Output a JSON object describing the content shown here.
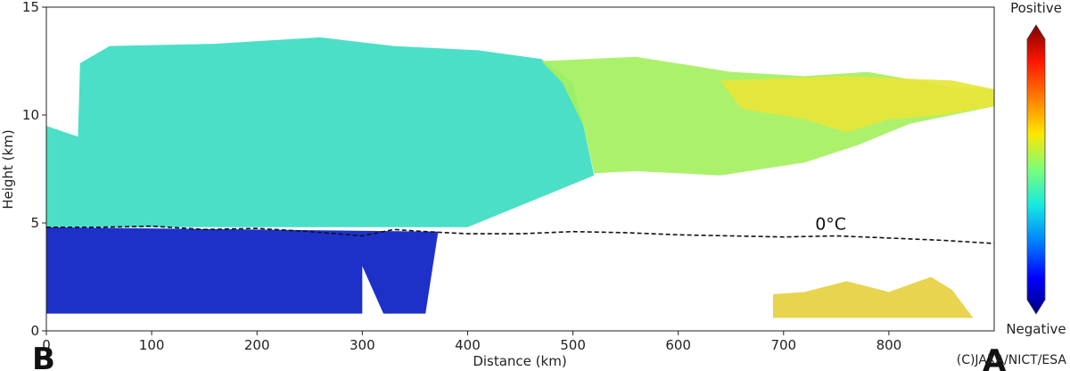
{
  "chart_data": {
    "type": "heatmap",
    "xlabel": "Distance (km)",
    "ylabel": "Height (km)",
    "xlim": [
      0,
      900
    ],
    "ylim": [
      0,
      15
    ],
    "x_ticks": [
      0,
      100,
      200,
      300,
      400,
      500,
      600,
      700,
      800
    ],
    "y_ticks": [
      0,
      5,
      10,
      15
    ],
    "colorbar": {
      "top_label": "Positive",
      "bottom_label": "Negative",
      "colors": [
        "#00007f",
        "#0000ff",
        "#0080ff",
        "#15e8e1",
        "#7bff7b",
        "#ffe600",
        "#ff7b00",
        "#ff1500",
        "#7f0000"
      ]
    },
    "regions": [
      {
        "name": "negative-below-melting",
        "color": "#0a1fc4",
        "outline": [
          [
            0,
            0.8
          ],
          [
            300,
            0.8
          ],
          [
            300,
            3.0
          ],
          [
            320,
            0.8
          ],
          [
            360,
            0.8
          ],
          [
            372,
            4.6
          ],
          [
            0,
            4.8
          ]
        ]
      },
      {
        "name": "cyan-green-upper",
        "color": "#3cdcc3",
        "outline": [
          [
            0,
            4.8
          ],
          [
            0,
            9.5
          ],
          [
            30,
            9.0
          ],
          [
            32,
            12.4
          ],
          [
            60,
            13.2
          ],
          [
            160,
            13.3
          ],
          [
            260,
            13.6
          ],
          [
            330,
            13.2
          ],
          [
            410,
            13.0
          ],
          [
            470,
            12.6
          ],
          [
            500,
            11.5
          ],
          [
            510,
            9.5
          ],
          [
            520,
            7.2
          ],
          [
            400,
            4.8
          ],
          [
            0,
            4.8
          ]
        ]
      },
      {
        "name": "green-yellow-transition",
        "color": "#a5f060",
        "outline": [
          [
            470,
            12.5
          ],
          [
            560,
            12.7
          ],
          [
            650,
            12.0
          ],
          [
            720,
            11.8
          ],
          [
            780,
            12.0
          ],
          [
            860,
            11.3
          ],
          [
            900,
            11.2
          ],
          [
            900,
            10.4
          ],
          [
            820,
            9.6
          ],
          [
            770,
            8.6
          ],
          [
            720,
            7.8
          ],
          [
            640,
            7.2
          ],
          [
            560,
            7.4
          ],
          [
            520,
            7.3
          ],
          [
            510,
            9.5
          ],
          [
            490,
            11.5
          ]
        ]
      },
      {
        "name": "yellow-orange-anvil",
        "color": "#e7e639",
        "outline": [
          [
            640,
            11.6
          ],
          [
            760,
            11.8
          ],
          [
            860,
            11.6
          ],
          [
            900,
            11.2
          ],
          [
            900,
            10.4
          ],
          [
            850,
            10.0
          ],
          [
            800,
            9.8
          ],
          [
            760,
            9.2
          ],
          [
            720,
            9.8
          ],
          [
            660,
            10.3
          ]
        ]
      },
      {
        "name": "low-cloud-patch",
        "color": "#e6d040",
        "outline": [
          [
            690,
            0.6
          ],
          [
            690,
            1.7
          ],
          [
            720,
            1.8
          ],
          [
            760,
            2.3
          ],
          [
            800,
            1.8
          ],
          [
            840,
            2.5
          ],
          [
            860,
            1.9
          ],
          [
            880,
            0.6
          ]
        ]
      }
    ],
    "isotherm": {
      "label": "0°C",
      "x": [
        0,
        50,
        100,
        150,
        200,
        250,
        300,
        330,
        360,
        400,
        450,
        500,
        550,
        600,
        650,
        700,
        750,
        800,
        850,
        900
      ],
      "y": [
        4.8,
        4.8,
        4.85,
        4.7,
        4.75,
        4.6,
        4.4,
        4.7,
        4.6,
        4.5,
        4.5,
        4.6,
        4.55,
        4.45,
        4.4,
        4.35,
        4.4,
        4.3,
        4.2,
        4.05
      ]
    }
  },
  "annotations": {
    "panel_left": "B",
    "panel_right": "A",
    "credit": "(C)JAXA/NICT/ESA"
  }
}
